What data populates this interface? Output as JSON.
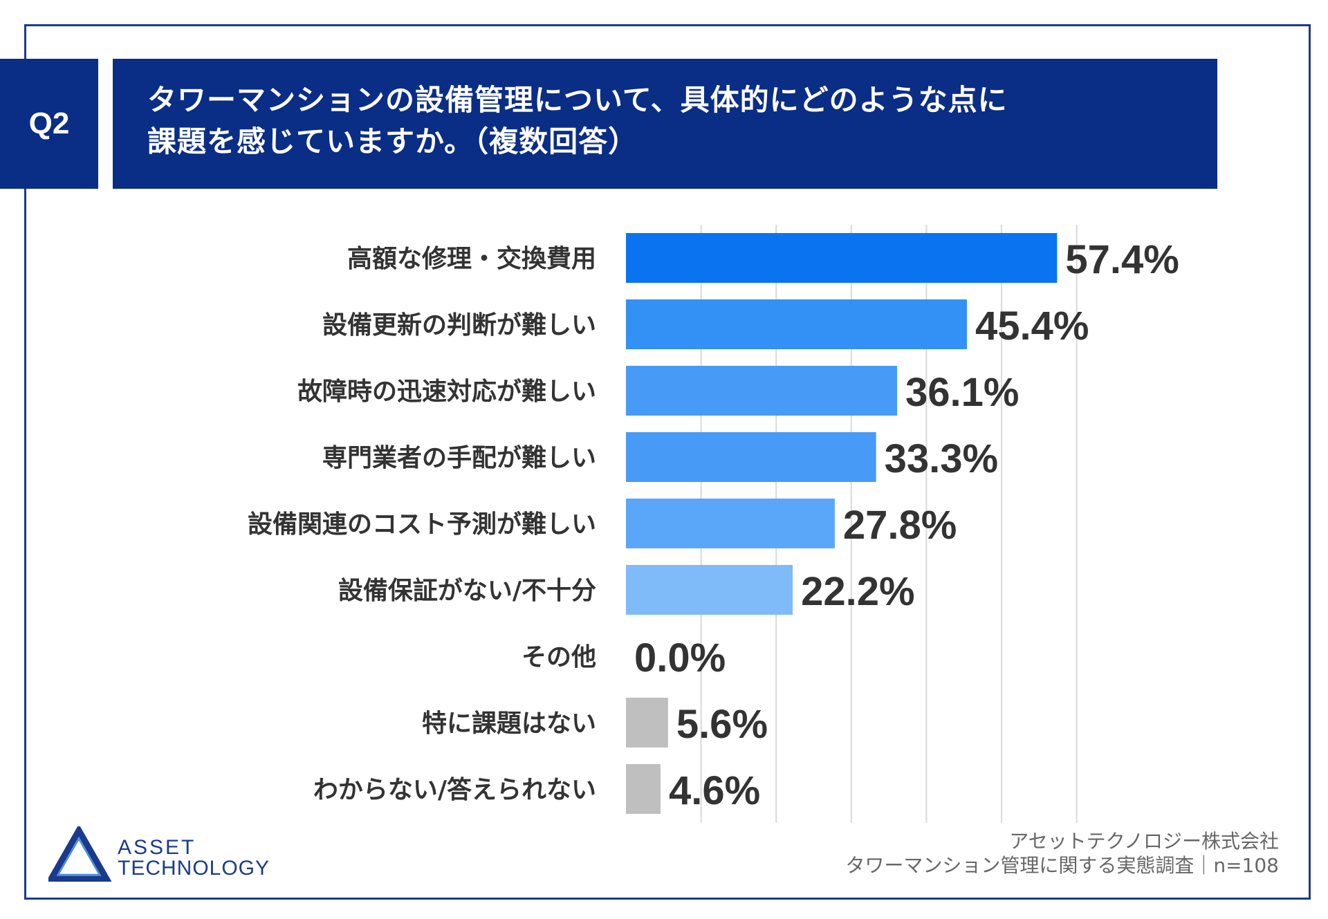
{
  "header": {
    "badge": "Q2",
    "title_line1": "タワーマンションの設備管理について、具体的にどのような点に",
    "title_line2": "課題を感じていますか。（複数回答）"
  },
  "chart_data": {
    "type": "bar",
    "orientation": "horizontal",
    "categories": [
      "高額な修理・交換費用",
      "設備更新の判断が難しい",
      "故障時の迅速対応が難しい",
      "専門業者の手配が難しい",
      "設備関連のコスト予測が難しい",
      "設備保証がない/不十分",
      "その他",
      "特に課題はない",
      "わからない/答えられない"
    ],
    "values": [
      57.4,
      45.4,
      36.1,
      33.3,
      27.8,
      22.2,
      0.0,
      5.6,
      4.6
    ],
    "value_labels": [
      "57.4%",
      "45.4%",
      "36.1%",
      "33.3%",
      "27.8%",
      "22.2%",
      "0.0%",
      "5.6%",
      "4.6%"
    ],
    "bar_colors": [
      "#0a74f0",
      "#3390f5",
      "#479bf7",
      "#479bf7",
      "#5aa6f8",
      "#7fbaf9",
      "#7fbaf9",
      "#bfbfbf",
      "#bfbfbf"
    ],
    "xlim": [
      0,
      60
    ],
    "grid": true
  },
  "footer": {
    "company": "アセットテクノロジー株式会社",
    "survey": "タワーマンション管理に関する実態調査｜n=108"
  },
  "logo": {
    "line1": "ASSET",
    "line2": "TECHNOLOGY",
    "color": "#1a3a8c"
  }
}
